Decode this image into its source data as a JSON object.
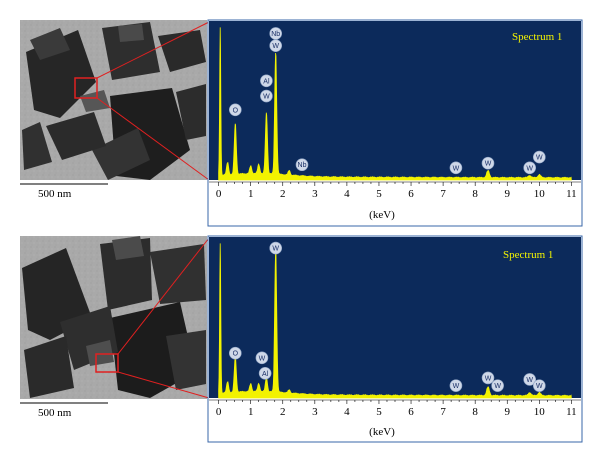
{
  "colors": {
    "plot_background": "#0c2a5b",
    "spectrum": "#f2f200",
    "axis_frame": "#3a67a8",
    "callout_lines": "#e02020",
    "roi_box": "#e02020",
    "peak_marker_fill": "#cfd8e8"
  },
  "scale_bar_label": "500 nm",
  "chart_data": [
    {
      "type": "area",
      "title": "Spectrum 1",
      "xlabel": "(keV)",
      "xlim": [
        -0.3,
        11.3
      ],
      "x_ticks": [
        0,
        1,
        2,
        3,
        4,
        5,
        6,
        7,
        8,
        9,
        10,
        11
      ],
      "y_relative": true,
      "grid": false,
      "peaks": [
        {
          "x": 0.05,
          "height": 1.0
        },
        {
          "x": 0.28,
          "height": 0.08
        },
        {
          "x": 0.52,
          "height": 0.33
        },
        {
          "x": 1.0,
          "height": 0.05
        },
        {
          "x": 1.25,
          "height": 0.06
        },
        {
          "x": 1.49,
          "height": 0.4
        },
        {
          "x": 1.78,
          "height": 0.8
        },
        {
          "x": 2.2,
          "height": 0.03
        },
        {
          "x": 8.4,
          "height": 0.045
        },
        {
          "x": 9.7,
          "height": 0.015
        },
        {
          "x": 10.0,
          "height": 0.02
        }
      ],
      "markers": [
        {
          "label": "O",
          "x": 0.52,
          "y": 0.46
        },
        {
          "label": "Al",
          "x": 1.49,
          "y": 0.65
        },
        {
          "label": "W",
          "x": 1.49,
          "y": 0.55
        },
        {
          "label": "Nb",
          "x": 1.78,
          "y": 0.96
        },
        {
          "label": "W",
          "x": 1.78,
          "y": 0.88
        },
        {
          "label": "Nb",
          "x": 2.6,
          "y": 0.1
        },
        {
          "label": "W",
          "x": 7.4,
          "y": 0.08
        },
        {
          "label": "W",
          "x": 8.4,
          "y": 0.11
        },
        {
          "label": "W",
          "x": 9.7,
          "y": 0.08
        },
        {
          "label": "W",
          "x": 10.0,
          "y": 0.15
        }
      ]
    },
    {
      "type": "area",
      "title": "Spectrum 1",
      "xlabel": "(keV)",
      "xlim": [
        -0.3,
        11.3
      ],
      "x_ticks": [
        0,
        1,
        2,
        3,
        4,
        5,
        6,
        7,
        8,
        9,
        10,
        11
      ],
      "y_relative": true,
      "grid": false,
      "peaks": [
        {
          "x": 0.05,
          "height": 1.0
        },
        {
          "x": 0.28,
          "height": 0.07
        },
        {
          "x": 0.52,
          "height": 0.23
        },
        {
          "x": 1.0,
          "height": 0.05
        },
        {
          "x": 1.25,
          "height": 0.05
        },
        {
          "x": 1.49,
          "height": 0.09
        },
        {
          "x": 1.78,
          "height": 0.92
        },
        {
          "x": 2.2,
          "height": 0.02
        },
        {
          "x": 8.4,
          "height": 0.055
        },
        {
          "x": 9.7,
          "height": 0.02
        },
        {
          "x": 10.0,
          "height": 0.02
        }
      ],
      "markers": [
        {
          "label": "W",
          "x": 1.78,
          "y": 0.97
        },
        {
          "label": "O",
          "x": 0.52,
          "y": 0.29
        },
        {
          "label": "W",
          "x": 1.35,
          "y": 0.26
        },
        {
          "label": "Al",
          "x": 1.45,
          "y": 0.16
        },
        {
          "label": "W",
          "x": 7.4,
          "y": 0.08
        },
        {
          "label": "W",
          "x": 8.4,
          "y": 0.13
        },
        {
          "label": "W",
          "x": 8.7,
          "y": 0.08
        },
        {
          "label": "W",
          "x": 9.7,
          "y": 0.12
        },
        {
          "label": "W",
          "x": 10.0,
          "y": 0.08
        }
      ]
    }
  ]
}
